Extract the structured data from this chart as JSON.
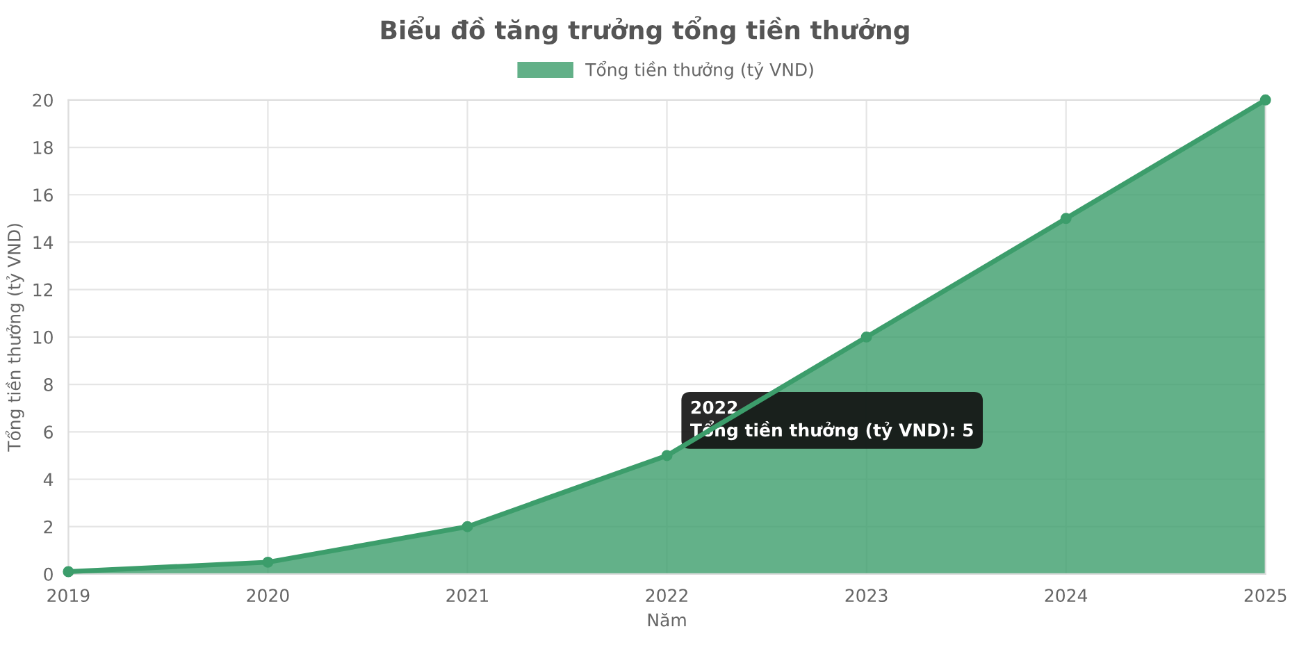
{
  "chart_data": {
    "type": "area",
    "title": "Biểu đồ tăng trưởng tổng tiền thưởng",
    "xlabel": "Năm",
    "ylabel": "Tổng tiền thưởng (tỷ VND)",
    "categories": [
      "2019",
      "2020",
      "2021",
      "2022",
      "2023",
      "2024",
      "2025"
    ],
    "series": [
      {
        "name": "Tổng tiền thưởng (tỷ VND)",
        "color": "#3c9d6b",
        "values": [
          0.1,
          0.5,
          2,
          5,
          10,
          15,
          20
        ]
      }
    ],
    "ylim": [
      0,
      20
    ],
    "yticks": [
      0,
      2,
      4,
      6,
      8,
      10,
      12,
      14,
      16,
      18,
      20
    ],
    "grid": true,
    "legend": "top",
    "marker": "circle",
    "annotations": [
      {
        "text": "2022\nTổng tiền thưởng (tỷ VND): 5",
        "x": "2022",
        "y": 5
      }
    ]
  }
}
